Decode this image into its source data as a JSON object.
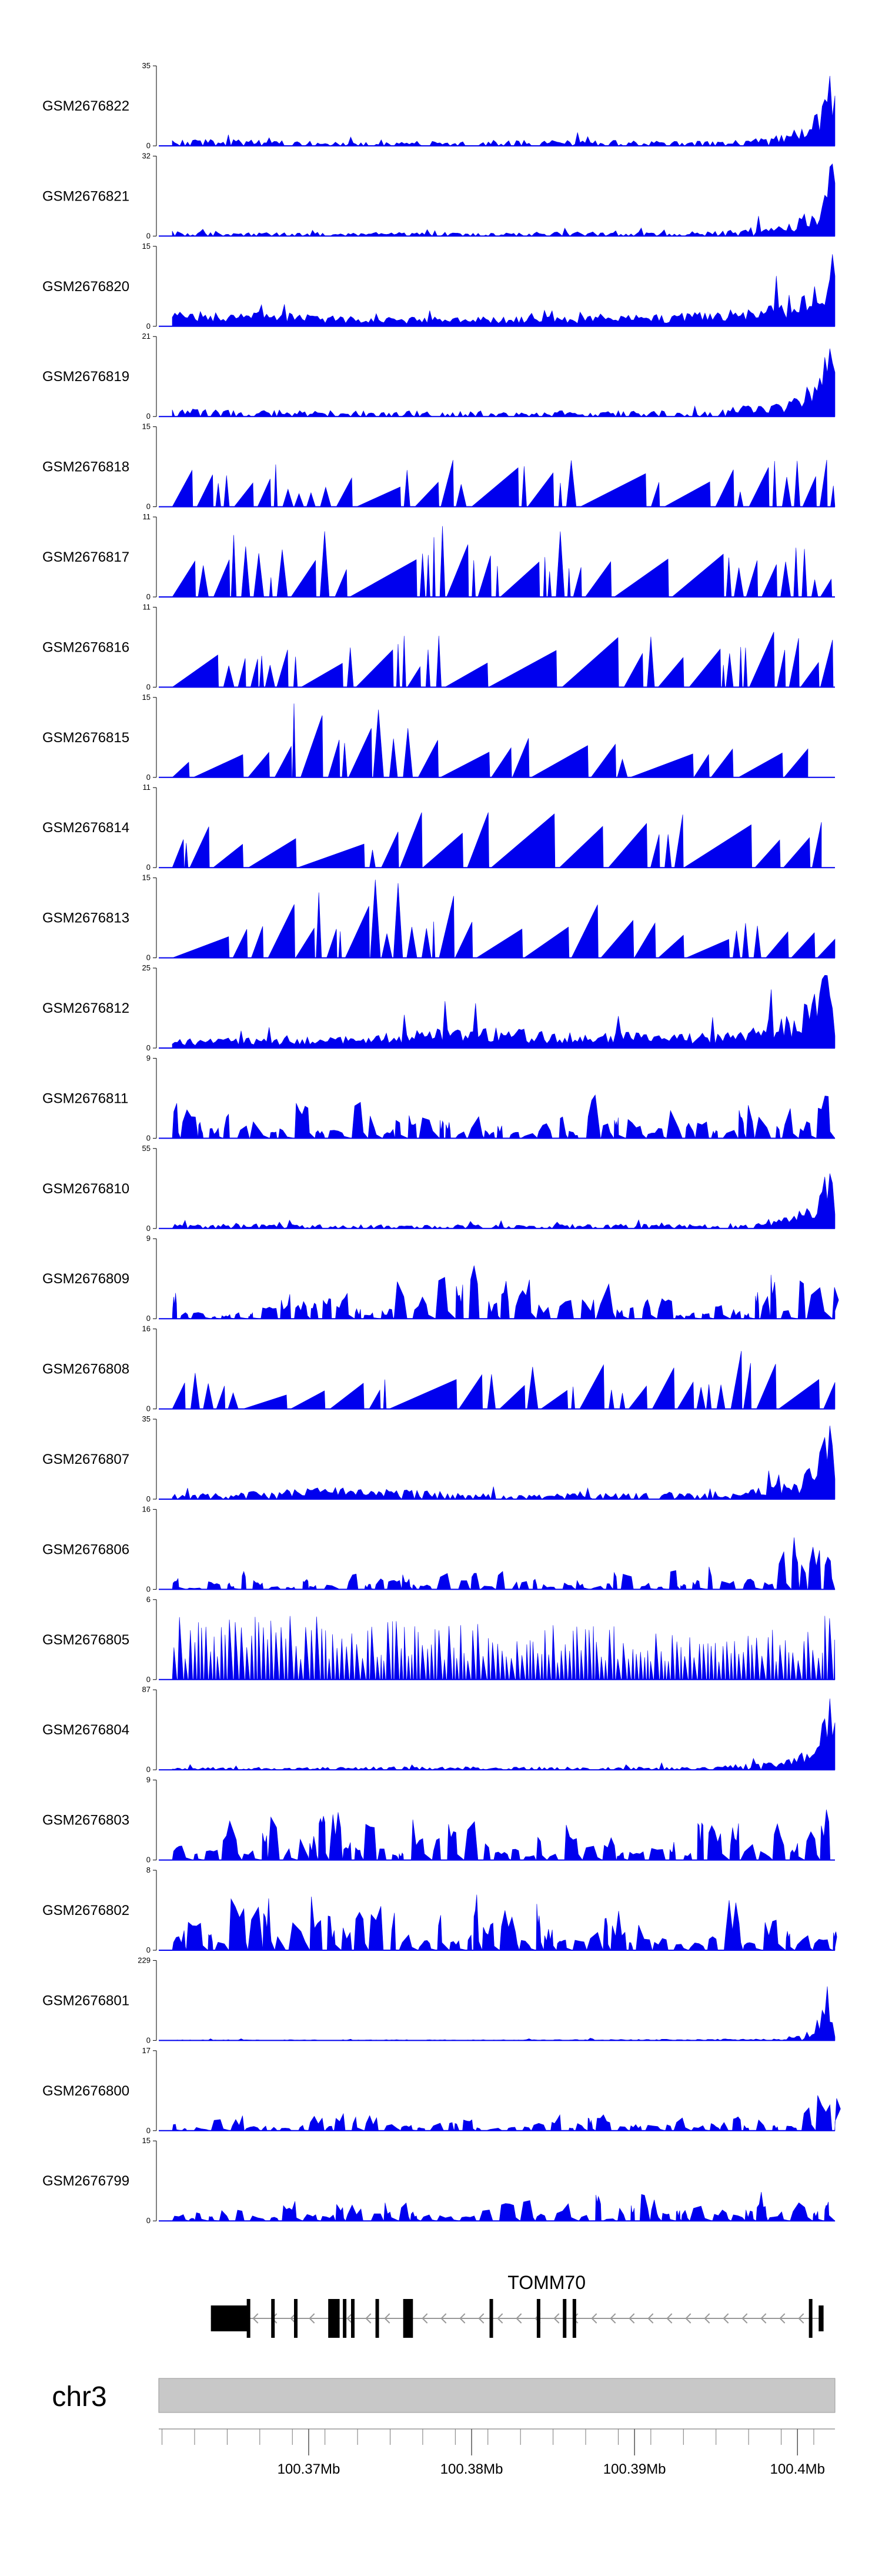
{
  "chart_data": {
    "type": "area",
    "chromosome": "chr3",
    "x_range_mb": [
      100.3608,
      100.4023
    ],
    "x_ticks": [
      {
        "value": 100.37,
        "label": "100.37Mb"
      },
      {
        "value": 100.38,
        "label": "100.38Mb"
      },
      {
        "value": 100.39,
        "label": "100.39Mb"
      },
      {
        "value": 100.4,
        "label": "100.4Mb"
      }
    ],
    "fill_color": "#0000ee",
    "tracks": [
      {
        "name": "GSM2676822",
        "ymax": 35,
        "style": "dense",
        "seed": 11,
        "pattern": [
          [
            0.02,
            0.07
          ],
          [
            0.1,
            0.09
          ],
          [
            0.3,
            0.05
          ],
          [
            0.6,
            0.08
          ],
          [
            0.75,
            0.06
          ],
          [
            0.9,
            0.1
          ],
          [
            0.95,
            0.25
          ],
          [
            0.975,
            0.45
          ],
          [
            0.985,
            0.75
          ],
          [
            0.992,
            1.0
          ],
          [
            0.997,
            0.7
          ],
          [
            1.0,
            0.8
          ]
        ]
      },
      {
        "name": "GSM2676821",
        "ymax": 32,
        "style": "dense",
        "seed": 12,
        "pattern": [
          [
            0.02,
            0.07
          ],
          [
            0.2,
            0.05
          ],
          [
            0.5,
            0.05
          ],
          [
            0.8,
            0.06
          ],
          [
            0.93,
            0.15
          ],
          [
            0.97,
            0.4
          ],
          [
            0.985,
            0.7
          ],
          [
            0.995,
            1.0
          ],
          [
            1.0,
            0.85
          ]
        ]
      },
      {
        "name": "GSM2676820",
        "ymax": 15,
        "style": "dense",
        "seed": 13,
        "pattern": [
          [
            0.02,
            0.18
          ],
          [
            0.15,
            0.2
          ],
          [
            0.3,
            0.12
          ],
          [
            0.5,
            0.12
          ],
          [
            0.75,
            0.15
          ],
          [
            0.9,
            0.25
          ],
          [
            0.96,
            0.45
          ],
          [
            0.985,
            0.75
          ],
          [
            0.995,
            1.0
          ],
          [
            1.0,
            0.7
          ]
        ]
      },
      {
        "name": "GSM2676819",
        "ymax": 21,
        "style": "dense",
        "seed": 14,
        "pattern": [
          [
            0.02,
            0.1
          ],
          [
            0.2,
            0.08
          ],
          [
            0.5,
            0.07
          ],
          [
            0.8,
            0.08
          ],
          [
            0.93,
            0.2
          ],
          [
            0.97,
            0.45
          ],
          [
            0.99,
            0.95
          ],
          [
            1.0,
            0.6
          ]
        ]
      },
      {
        "name": "GSM2676818",
        "ymax": 15,
        "style": "sparse",
        "seed": 21,
        "pattern": [
          [
            0.02,
            0.6
          ],
          [
            0.45,
            0.7
          ],
          [
            0.7,
            0.85
          ],
          [
            0.9,
            0.6
          ],
          [
            0.98,
            1.0
          ],
          [
            1.0,
            0.7
          ]
        ]
      },
      {
        "name": "GSM2676817",
        "ymax": 11,
        "style": "sparse",
        "seed": 22,
        "pattern": [
          [
            0.02,
            0.55
          ],
          [
            0.13,
            0.95
          ],
          [
            0.4,
            0.95
          ],
          [
            0.6,
            0.85
          ],
          [
            0.85,
            0.75
          ],
          [
            1.0,
            0.6
          ]
        ]
      },
      {
        "name": "GSM2676816",
        "ymax": 11,
        "style": "sparse",
        "seed": 23,
        "pattern": [
          [
            0.02,
            0.95
          ],
          [
            0.4,
            0.7
          ],
          [
            0.75,
            0.95
          ],
          [
            0.9,
            0.85
          ],
          [
            1.0,
            0.7
          ]
        ]
      },
      {
        "name": "GSM2676815",
        "ymax": 15,
        "style": "sparse",
        "seed": 24,
        "pattern": [
          [
            0.02,
            0.45
          ],
          [
            0.22,
            1.0
          ],
          [
            0.5,
            0.6
          ],
          [
            0.8,
            0.6
          ],
          [
            0.96,
            0.5
          ]
        ]
      },
      {
        "name": "GSM2676814",
        "ymax": 11,
        "style": "sparse",
        "seed": 25,
        "pattern": [
          [
            0.02,
            0.65
          ],
          [
            0.48,
            0.95
          ],
          [
            0.75,
            1.0
          ],
          [
            0.95,
            0.9
          ],
          [
            0.98,
            0.5
          ]
        ]
      },
      {
        "name": "GSM2676813",
        "ymax": 15,
        "style": "sparse",
        "seed": 26,
        "pattern": [
          [
            0.02,
            0.4
          ],
          [
            0.2,
            1.0
          ],
          [
            0.48,
            1.0
          ],
          [
            0.8,
            0.55
          ],
          [
            1.0,
            0.35
          ]
        ]
      },
      {
        "name": "GSM2676812",
        "ymax": 25,
        "style": "dense",
        "seed": 31,
        "pattern": [
          [
            0.02,
            0.12
          ],
          [
            0.3,
            0.15
          ],
          [
            0.45,
            0.3
          ],
          [
            0.6,
            0.2
          ],
          [
            0.85,
            0.2
          ],
          [
            0.95,
            0.5
          ],
          [
            0.98,
            0.85
          ],
          [
            0.99,
            1.0
          ],
          [
            1.0,
            0.3
          ]
        ]
      },
      {
        "name": "GSM2676811",
        "ymax": 9,
        "style": "medium",
        "seed": 32,
        "pattern": [
          [
            0.02,
            0.5
          ],
          [
            0.22,
            0.8
          ],
          [
            0.45,
            0.6
          ],
          [
            0.7,
            0.55
          ],
          [
            0.9,
            0.75
          ],
          [
            0.97,
            0.95
          ],
          [
            1.0,
            1.0
          ]
        ]
      },
      {
        "name": "GSM2676810",
        "ymax": 55,
        "style": "dense",
        "seed": 33,
        "pattern": [
          [
            0.02,
            0.06
          ],
          [
            0.3,
            0.05
          ],
          [
            0.6,
            0.05
          ],
          [
            0.85,
            0.07
          ],
          [
            0.93,
            0.15
          ],
          [
            0.97,
            0.35
          ],
          [
            0.985,
            0.75
          ],
          [
            0.995,
            1.0
          ],
          [
            1.0,
            0.4
          ]
        ]
      },
      {
        "name": "GSM2676809",
        "ymax": 9,
        "style": "medium",
        "seed": 34,
        "pattern": [
          [
            0.02,
            0.4
          ],
          [
            0.3,
            0.5
          ],
          [
            0.47,
            0.9
          ],
          [
            0.7,
            0.4
          ],
          [
            0.88,
            0.5
          ],
          [
            0.95,
            0.75
          ],
          [
            0.99,
            1.0
          ],
          [
            1.0,
            0.8
          ]
        ]
      },
      {
        "name": "GSM2676808",
        "ymax": 16,
        "style": "sparse",
        "seed": 35,
        "pattern": [
          [
            0.02,
            0.45
          ],
          [
            0.4,
            0.55
          ],
          [
            0.6,
            0.65
          ],
          [
            0.8,
            1.0
          ],
          [
            0.95,
            0.7
          ],
          [
            1.0,
            0.45
          ]
        ]
      },
      {
        "name": "GSM2676807",
        "ymax": 35,
        "style": "dense",
        "seed": 36,
        "pattern": [
          [
            0.02,
            0.06
          ],
          [
            0.27,
            0.15
          ],
          [
            0.5,
            0.07
          ],
          [
            0.85,
            0.08
          ],
          [
            0.95,
            0.25
          ],
          [
            0.98,
            0.7
          ],
          [
            0.99,
            1.0
          ],
          [
            1.0,
            0.9
          ]
        ]
      },
      {
        "name": "GSM2676806",
        "ymax": 16,
        "style": "medium",
        "seed": 41,
        "pattern": [
          [
            0.02,
            0.2
          ],
          [
            0.2,
            0.3
          ],
          [
            0.4,
            0.25
          ],
          [
            0.7,
            0.3
          ],
          [
            0.9,
            0.55
          ],
          [
            0.97,
            0.85
          ],
          [
            1.0,
            1.0
          ]
        ]
      },
      {
        "name": "GSM2676805",
        "ymax": 6,
        "style": "comb",
        "seed": 42,
        "pattern": [
          [
            0.02,
            0.8
          ],
          [
            0.17,
            0.85
          ],
          [
            0.3,
            0.75
          ],
          [
            0.5,
            0.7
          ],
          [
            0.8,
            0.65
          ],
          [
            0.95,
            0.75
          ],
          [
            1.0,
            1.0
          ]
        ]
      },
      {
        "name": "GSM2676804",
        "ymax": 87,
        "style": "dense",
        "seed": 43,
        "pattern": [
          [
            0.02,
            0.03
          ],
          [
            0.4,
            0.04
          ],
          [
            0.8,
            0.04
          ],
          [
            0.92,
            0.1
          ],
          [
            0.97,
            0.3
          ],
          [
            0.985,
            0.7
          ],
          [
            0.995,
            1.0
          ],
          [
            1.0,
            0.7
          ]
        ]
      },
      {
        "name": "GSM2676803",
        "ymax": 9,
        "style": "medium",
        "seed": 44,
        "pattern": [
          [
            0.02,
            0.4
          ],
          [
            0.2,
            0.75
          ],
          [
            0.47,
            0.6
          ],
          [
            0.65,
            0.55
          ],
          [
            0.88,
            0.6
          ],
          [
            0.96,
            0.8
          ],
          [
            1.0,
            1.0
          ]
        ]
      },
      {
        "name": "GSM2676802",
        "ymax": 8,
        "style": "medium",
        "seed": 45,
        "pattern": [
          [
            0.02,
            0.85
          ],
          [
            0.2,
            0.8
          ],
          [
            0.45,
            0.75
          ],
          [
            0.7,
            0.65
          ],
          [
            0.9,
            0.75
          ],
          [
            0.97,
            0.9
          ],
          [
            1.0,
            0.95
          ]
        ]
      },
      {
        "name": "GSM2676801",
        "ymax": 229,
        "style": "dense",
        "seed": 51,
        "pattern": [
          [
            0.02,
            0.01
          ],
          [
            0.5,
            0.01
          ],
          [
            0.93,
            0.02
          ],
          [
            0.97,
            0.15
          ],
          [
            0.985,
            0.8
          ],
          [
            0.99,
            1.0
          ],
          [
            0.995,
            0.6
          ],
          [
            1.0,
            0.1
          ]
        ]
      },
      {
        "name": "GSM2676800",
        "ymax": 17,
        "style": "medium",
        "seed": 52,
        "pattern": [
          [
            0.02,
            0.2
          ],
          [
            0.3,
            0.3
          ],
          [
            0.6,
            0.25
          ],
          [
            0.85,
            0.3
          ],
          [
            0.95,
            0.55
          ],
          [
            0.99,
            0.95
          ],
          [
            1.0,
            1.0
          ]
        ]
      },
      {
        "name": "GSM2676799",
        "ymax": 15,
        "style": "medium",
        "seed": 53,
        "pattern": [
          [
            0.02,
            0.25
          ],
          [
            0.4,
            0.4
          ],
          [
            0.6,
            0.35
          ],
          [
            0.85,
            0.35
          ],
          [
            0.95,
            0.6
          ],
          [
            0.99,
            0.95
          ],
          [
            1.0,
            1.0
          ]
        ]
      }
    ],
    "gene": {
      "name": "TOMM70",
      "strand": "-",
      "start_mb": 100.364,
      "end_mb": 100.4016,
      "exons_mb": [
        [
          100.364,
          100.3664
        ],
        [
          100.3677,
          100.3679
        ],
        [
          100.3691,
          100.3693
        ],
        [
          100.3712,
          100.3719
        ],
        [
          100.3721,
          100.3723
        ],
        [
          100.3726,
          100.3728
        ],
        [
          100.3741,
          100.3743
        ],
        [
          100.3758,
          100.3764
        ],
        [
          100.3811,
          100.3813
        ],
        [
          100.384,
          100.3842
        ],
        [
          100.3856,
          100.3858
        ],
        [
          100.3862,
          100.3864
        ],
        [
          100.4007,
          100.4009
        ],
        [
          100.4013,
          100.4016
        ]
      ]
    }
  }
}
